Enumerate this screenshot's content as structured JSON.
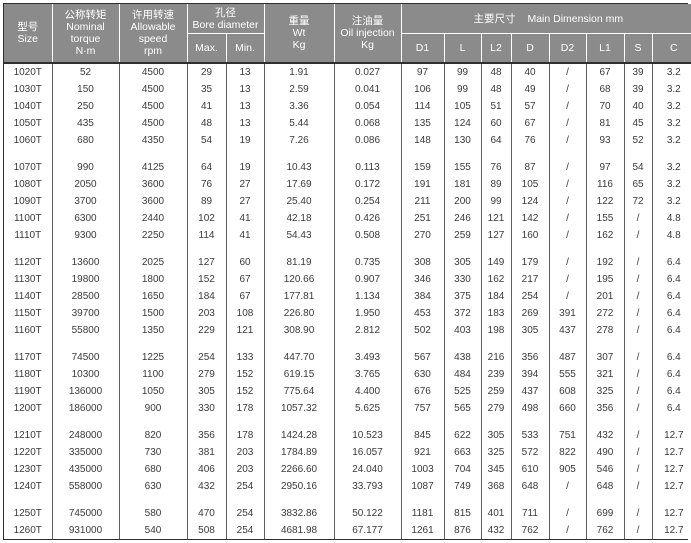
{
  "colors": {
    "header_bg": "#8b8b8b",
    "header_text": "#ffffff",
    "outer_border": "#2f2f2f",
    "grid_line": "#606060",
    "body_text": "#3a3a3a"
  },
  "header": {
    "size_zh": "型号",
    "size_en": "Size",
    "torque_zh": "公称转矩",
    "torque_en1": "Nominal",
    "torque_en2": "torque",
    "torque_unit": "N·m",
    "speed_zh": "许用转速",
    "speed_en1": "Allowable",
    "speed_en2": "speed",
    "speed_unit": "rpm",
    "bore_zh": "孔径",
    "bore_en": "Bore diameter",
    "bore_max": "Max.",
    "bore_min": "Min.",
    "wt_zh": "重量",
    "wt_en": "Wt",
    "wt_unit": "Kg",
    "oil_zh": "注油量",
    "oil_en": "Oil injection",
    "oil_unit": "Kg",
    "main_zh": "主要尺寸",
    "main_en": "Main Dimension mm",
    "dim_cols": [
      "D1",
      "L",
      "L2",
      "D",
      "D2",
      "L1",
      "S",
      "C"
    ]
  },
  "groups": [
    [
      [
        "1020T",
        "52",
        "4500",
        "29",
        "13",
        "1.91",
        "0.027",
        "97",
        "99",
        "48",
        "40",
        "/",
        "67",
        "39",
        "3.2"
      ],
      [
        "1030T",
        "150",
        "4500",
        "35",
        "13",
        "2.59",
        "0.041",
        "106",
        "99",
        "48",
        "49",
        "/",
        "68",
        "39",
        "3.2"
      ],
      [
        "1040T",
        "250",
        "4500",
        "41",
        "13",
        "3.36",
        "0.054",
        "114",
        "105",
        "51",
        "57",
        "/",
        "70",
        "40",
        "3.2"
      ],
      [
        "1050T",
        "435",
        "4500",
        "48",
        "13",
        "5.44",
        "0.068",
        "135",
        "124",
        "60",
        "67",
        "/",
        "81",
        "45",
        "3.2"
      ],
      [
        "1060T",
        "680",
        "4350",
        "54",
        "19",
        "7.26",
        "0.086",
        "148",
        "130",
        "64",
        "76",
        "/",
        "93",
        "52",
        "3.2"
      ]
    ],
    [
      [
        "1070T",
        "990",
        "4125",
        "64",
        "19",
        "10.43",
        "0.113",
        "159",
        "155",
        "76",
        "87",
        "/",
        "97",
        "54",
        "3.2"
      ],
      [
        "1080T",
        "2050",
        "3600",
        "76",
        "27",
        "17.69",
        "0.172",
        "191",
        "181",
        "89",
        "105",
        "/",
        "116",
        "65",
        "3.2"
      ],
      [
        "1090T",
        "3700",
        "3600",
        "89",
        "27",
        "25.40",
        "0.254",
        "211",
        "200",
        "99",
        "124",
        "/",
        "122",
        "72",
        "3.2"
      ],
      [
        "1100T",
        "6300",
        "2440",
        "102",
        "41",
        "42.18",
        "0.426",
        "251",
        "246",
        "121",
        "142",
        "/",
        "155",
        "/",
        "4.8"
      ],
      [
        "1110T",
        "9300",
        "2250",
        "114",
        "41",
        "54.43",
        "0.508",
        "270",
        "259",
        "127",
        "160",
        "/",
        "162",
        "/",
        "4.8"
      ]
    ],
    [
      [
        "1120T",
        "13600",
        "2025",
        "127",
        "60",
        "81.19",
        "0.735",
        "308",
        "305",
        "149",
        "179",
        "/",
        "192",
        "/",
        "6.4"
      ],
      [
        "1130T",
        "19800",
        "1800",
        "152",
        "67",
        "120.66",
        "0.907",
        "346",
        "330",
        "162",
        "217",
        "/",
        "195",
        "/",
        "6.4"
      ],
      [
        "1140T",
        "28500",
        "1650",
        "184",
        "67",
        "177.81",
        "1.134",
        "384",
        "375",
        "184",
        "254",
        "/",
        "201",
        "/",
        "6.4"
      ],
      [
        "1150T",
        "39700",
        "1500",
        "203",
        "108",
        "226.80",
        "1.950",
        "453",
        "372",
        "183",
        "269",
        "391",
        "272",
        "/",
        "6.4"
      ],
      [
        "1160T",
        "55800",
        "1350",
        "229",
        "121",
        "308.90",
        "2.812",
        "502",
        "403",
        "198",
        "305",
        "437",
        "278",
        "/",
        "6.4"
      ]
    ],
    [
      [
        "1170T",
        "74500",
        "1225",
        "254",
        "133",
        "447.70",
        "3.493",
        "567",
        "438",
        "216",
        "356",
        "487",
        "307",
        "/",
        "6.4"
      ],
      [
        "1180T",
        "10300",
        "1100",
        "279",
        "152",
        "619.15",
        "3.765",
        "630",
        "484",
        "239",
        "394",
        "555",
        "321",
        "/",
        "6.4"
      ],
      [
        "1190T",
        "136000",
        "1050",
        "305",
        "152",
        "775.64",
        "4.400",
        "676",
        "525",
        "259",
        "437",
        "608",
        "325",
        "/",
        "6.4"
      ],
      [
        "1200T",
        "186000",
        "900",
        "330",
        "178",
        "1057.32",
        "5.625",
        "757",
        "565",
        "279",
        "498",
        "660",
        "356",
        "/",
        "6.4"
      ]
    ],
    [
      [
        "1210T",
        "248000",
        "820",
        "356",
        "178",
        "1424.28",
        "10.523",
        "845",
        "622",
        "305",
        "533",
        "751",
        "432",
        "/",
        "12.7"
      ],
      [
        "1220T",
        "335000",
        "730",
        "381",
        "203",
        "1784.89",
        "16.057",
        "921",
        "663",
        "325",
        "572",
        "822",
        "490",
        "/",
        "12.7"
      ],
      [
        "1230T",
        "435000",
        "680",
        "406",
        "203",
        "2266.60",
        "24.040",
        "1003",
        "704",
        "345",
        "610",
        "905",
        "546",
        "/",
        "12.7"
      ],
      [
        "1240T",
        "558000",
        "630",
        "432",
        "254",
        "2950.16",
        "33.793",
        "1087",
        "749",
        "368",
        "648",
        "/",
        "648",
        "/",
        "12.7"
      ]
    ],
    [
      [
        "1250T",
        "745000",
        "580",
        "470",
        "254",
        "3832.86",
        "50.122",
        "1181",
        "815",
        "401",
        "711",
        "/",
        "699",
        "/",
        "12.7"
      ],
      [
        "1260T",
        "931000",
        "540",
        "508",
        "254",
        "4681.98",
        "67.177",
        "1261",
        "876",
        "432",
        "762",
        "/",
        "762",
        "/",
        "12.7"
      ]
    ]
  ]
}
